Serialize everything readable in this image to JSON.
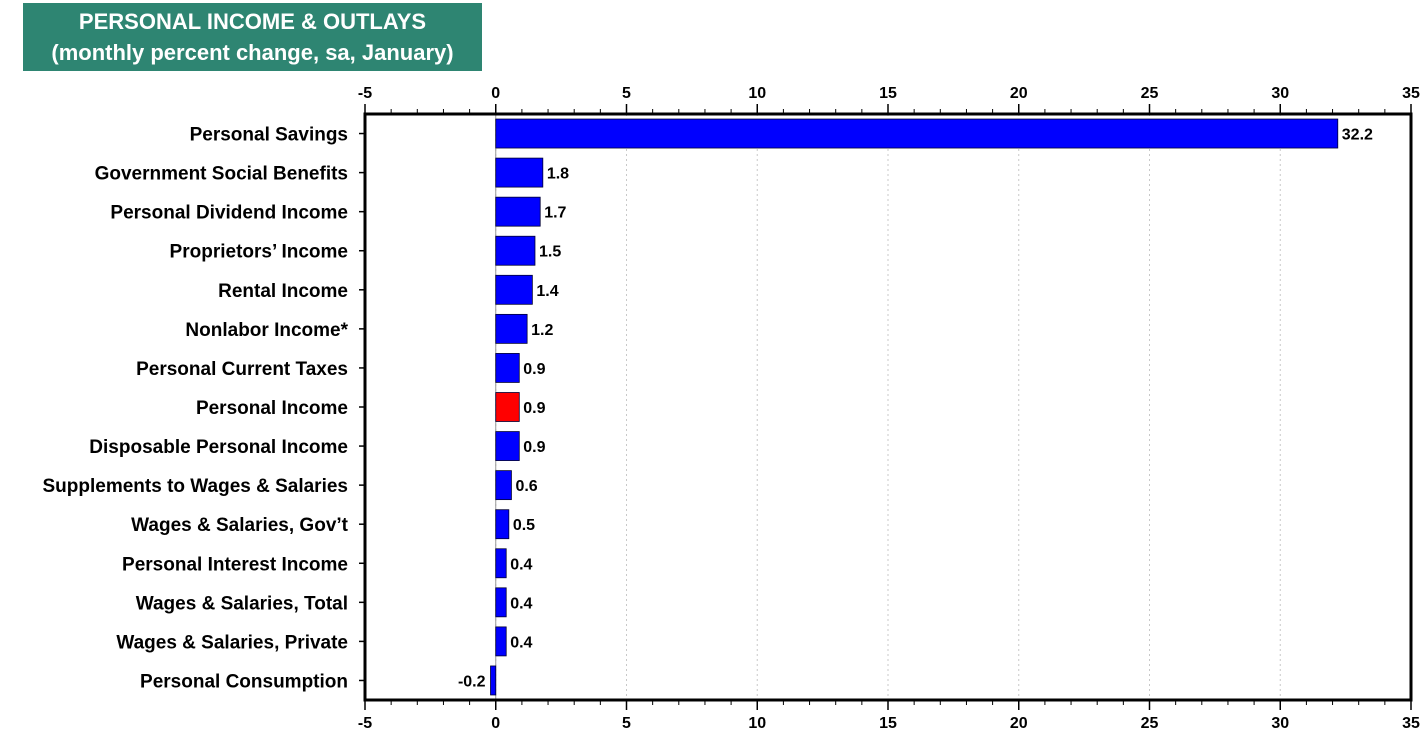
{
  "chart_data": {
    "type": "bar",
    "orientation": "horizontal",
    "title": "PERSONAL INCOME & OUTLAYS",
    "subtitle": "(monthly percent change, sa, January)",
    "xlabel": "",
    "ylabel": "",
    "xlim": [
      -5,
      35
    ],
    "xticks": [
      -5,
      0,
      5,
      10,
      15,
      20,
      25,
      30,
      35
    ],
    "grid": true,
    "legend": "none",
    "bar_color": "#0000ff",
    "highlight_color": "#ff0000",
    "categories": [
      "Personal Savings",
      "Government Social Benefits",
      "Personal Dividend Income",
      "Proprietors’ Income",
      "Rental Income",
      "Nonlabor Income*",
      "Personal Current Taxes",
      "Personal Income",
      "Disposable Personal Income",
      "Supplements to Wages & Salaries",
      "Wages & Salaries, Gov’t",
      "Personal Interest Income",
      "Wages & Salaries, Total",
      "Wages & Salaries, Private",
      "Personal Consumption"
    ],
    "values": [
      32.2,
      1.8,
      1.7,
      1.5,
      1.4,
      1.2,
      0.9,
      0.9,
      0.9,
      0.6,
      0.5,
      0.4,
      0.4,
      0.4,
      -0.2
    ],
    "value_labels": [
      "32.2",
      "1.8",
      "1.7",
      "1.5",
      "1.4",
      "1.2",
      "0.9",
      "0.9",
      "0.9",
      "0.6",
      "0.5",
      "0.4",
      "0.4",
      "0.4",
      "-0.2"
    ],
    "highlight": [
      "Personal Income"
    ]
  }
}
